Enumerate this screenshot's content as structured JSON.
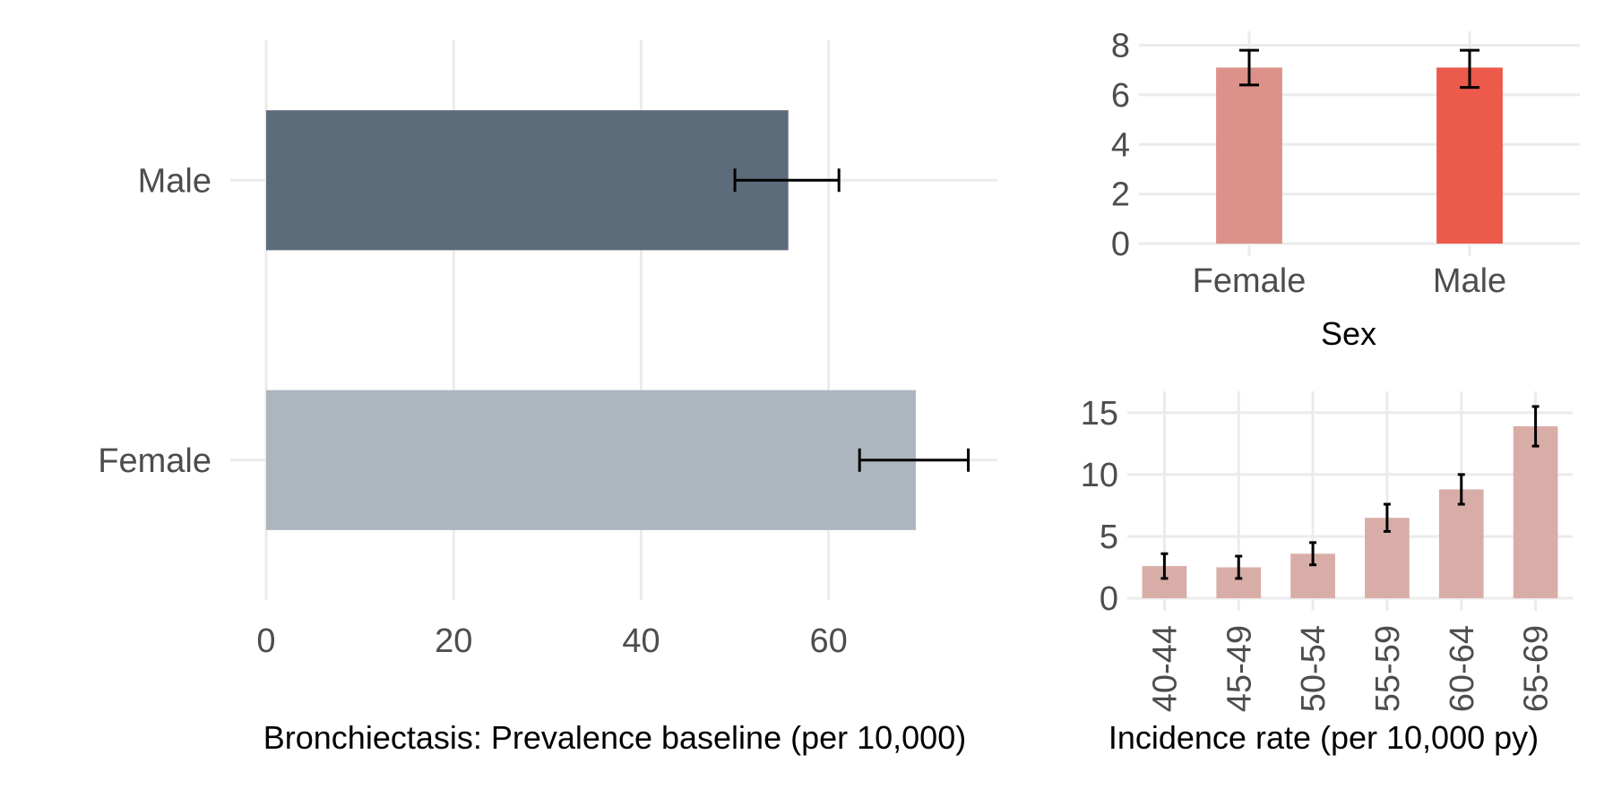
{
  "chart_data": [
    {
      "type": "bar",
      "orientation": "horizontal",
      "categories": [
        "Male",
        "Female"
      ],
      "values": [
        55.7,
        69.3
      ],
      "error_low": [
        50.0,
        63.3
      ],
      "error_high": [
        61.1,
        74.9
      ],
      "colors": [
        "#5d6c7b",
        "#adb5bf"
      ],
      "xlabel": "Bronchiectasis: Prevalence baseline (per 10,000)",
      "ylabel": "",
      "xlim": [
        0,
        78
      ],
      "xticks": [
        "0",
        "20",
        "40",
        "60"
      ],
      "grid": true
    },
    {
      "type": "bar",
      "categories": [
        "Female",
        "Male"
      ],
      "values": [
        7.1,
        7.1
      ],
      "error_low": [
        6.4,
        6.3
      ],
      "error_high": [
        7.8,
        7.8
      ],
      "colors": [
        "#dc918a",
        "#eb5a4b"
      ],
      "xlabel": "Sex",
      "ylabel": "",
      "ylim": [
        0,
        8.2
      ],
      "yticks": [
        "0",
        "2",
        "4",
        "6",
        "8"
      ],
      "grid": true
    },
    {
      "type": "bar",
      "categories": [
        "40-44",
        "45-49",
        "50-54",
        "55-59",
        "60-64",
        "65-69"
      ],
      "values": [
        2.6,
        2.5,
        3.6,
        6.5,
        8.8,
        13.9
      ],
      "error_low": [
        1.6,
        1.6,
        2.7,
        5.4,
        7.6,
        12.3
      ],
      "error_high": [
        3.6,
        3.4,
        4.5,
        7.6,
        10.0,
        15.5
      ],
      "colors": [
        "#d9ada7"
      ],
      "xlabel": "Incidence rate (per 10,000 py)",
      "ylabel": "",
      "ylim": [
        0,
        16
      ],
      "yticks": [
        "0",
        "5",
        "10",
        "15"
      ],
      "grid": true
    }
  ]
}
